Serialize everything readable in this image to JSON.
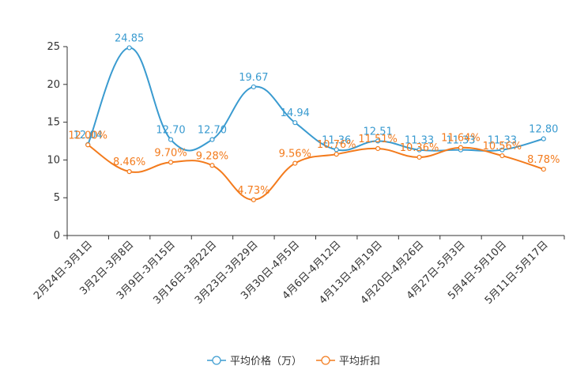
{
  "chart_data": {
    "type": "line",
    "title": "",
    "xlabel": "",
    "ylabel": "",
    "ylim": [
      0,
      25
    ],
    "yticks": [
      0,
      5,
      10,
      15,
      20,
      25
    ],
    "grid": false,
    "legend_position": "bottom-center",
    "categories": [
      "2月24日-3月1日",
      "3月2日-3月8日",
      "3月9日-3月15日",
      "3月16日-3月22日",
      "3月23日-3月29日",
      "3月30日-4月5日",
      "4月6日-4月12日",
      "4月13日-4月19日",
      "4月20日-4月26日",
      "4月27日-5月3日",
      "5月4日-5月10日",
      "5月11日-5月17日"
    ],
    "series": [
      {
        "name": "平均价格（万）",
        "color": "#3a9bd0",
        "values": [
          12.04,
          24.85,
          12.7,
          12.7,
          19.67,
          14.94,
          11.36,
          12.51,
          11.33,
          11.33,
          11.33,
          12.8
        ],
        "labels": [
          "12.04",
          "24.85",
          "12.70",
          "12.70",
          "19.67",
          "14.94",
          "11.36",
          "12.51",
          "11.33",
          "11.33",
          "11.33",
          "12.80"
        ]
      },
      {
        "name": "平均折扣",
        "color": "#f37b1d",
        "values": [
          12.0,
          8.46,
          9.7,
          9.28,
          4.73,
          9.56,
          10.76,
          11.51,
          10.36,
          11.64,
          10.56,
          8.78
        ],
        "labels": [
          "12.00%",
          "8.46%",
          "9.70%",
          "9.28%",
          "4.73%",
          "9.56%",
          "10.76%",
          "11.51%",
          "10.36%",
          "11.64%",
          "10.56%",
          "8.78%"
        ]
      }
    ]
  }
}
